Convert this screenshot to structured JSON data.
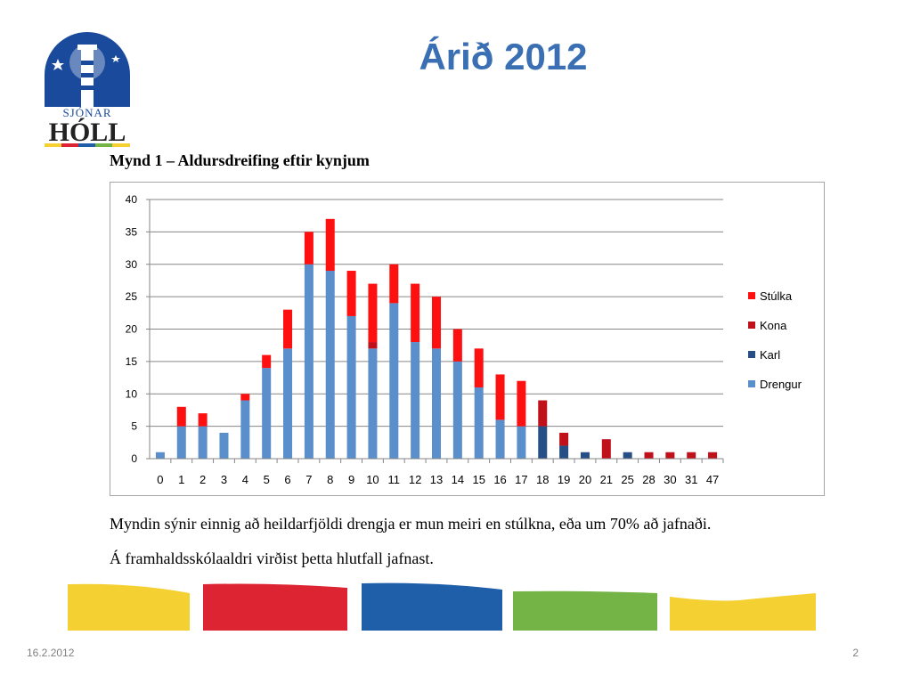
{
  "slide": {
    "title": "Árið 2012",
    "caption": "Mynd 1 – Aldursdreifing eftir kynjum",
    "paragraph1": "Myndin sýnir einnig að heildarfjöldi drengja er mun meiri en stúlkna, eða um 70% að jafnaði.",
    "paragraph2": "Á framhaldsskólaaldri virðist þetta hlutfall jafnast.",
    "footer_date": "16.2.2012",
    "slide_number": "2"
  },
  "logo": {
    "line1": "SJÓNAR",
    "line2": "HÓLL"
  },
  "colors": {
    "title": "#3a6fb4",
    "ribbon": [
      "#f5d032",
      "#dc2432",
      "#1f5ea8",
      "#74b446",
      "#f5d032"
    ]
  },
  "chart_data": {
    "type": "bar",
    "stacked": true,
    "categories": [
      "0",
      "1",
      "2",
      "3",
      "4",
      "5",
      "6",
      "7",
      "8",
      "9",
      "10",
      "11",
      "12",
      "13",
      "14",
      "15",
      "16",
      "17",
      "18",
      "19",
      "20",
      "21",
      "25",
      "28",
      "30",
      "31",
      "47"
    ],
    "series": [
      {
        "name": "Drengur",
        "color": "#5b8fcc",
        "values": [
          1,
          5,
          5,
          4,
          9,
          14,
          17,
          30,
          29,
          22,
          17,
          24,
          18,
          17,
          15,
          11,
          6,
          5,
          0,
          0,
          0,
          0,
          0,
          0,
          0,
          0,
          0
        ]
      },
      {
        "name": "Karl",
        "color": "#264f86",
        "values": [
          0,
          0,
          0,
          0,
          0,
          0,
          0,
          0,
          0,
          0,
          0,
          0,
          0,
          0,
          0,
          0,
          0,
          0,
          5,
          2,
          1,
          0,
          1,
          0,
          0,
          0,
          0
        ]
      },
      {
        "name": "Kona",
        "color": "#c0101a",
        "values": [
          0,
          0,
          0,
          0,
          0,
          0,
          0,
          0,
          0,
          0,
          1,
          0,
          0,
          0,
          0,
          0,
          0,
          0,
          4,
          2,
          0,
          3,
          0,
          1,
          1,
          1,
          1
        ]
      },
      {
        "name": "Stúlka",
        "color": "#ff1010",
        "values": [
          0,
          3,
          2,
          0,
          1,
          2,
          6,
          5,
          8,
          7,
          9,
          6,
          9,
          8,
          5,
          6,
          7,
          7,
          0,
          0,
          0,
          0,
          0,
          0,
          0,
          0,
          0
        ]
      }
    ],
    "legend_order": [
      "Stúlka",
      "Kona",
      "Karl",
      "Drengur"
    ],
    "legend_position": "right",
    "ylim": [
      0,
      40
    ],
    "yticks": [
      0,
      5,
      10,
      15,
      20,
      25,
      30,
      35,
      40
    ],
    "grid": true
  }
}
